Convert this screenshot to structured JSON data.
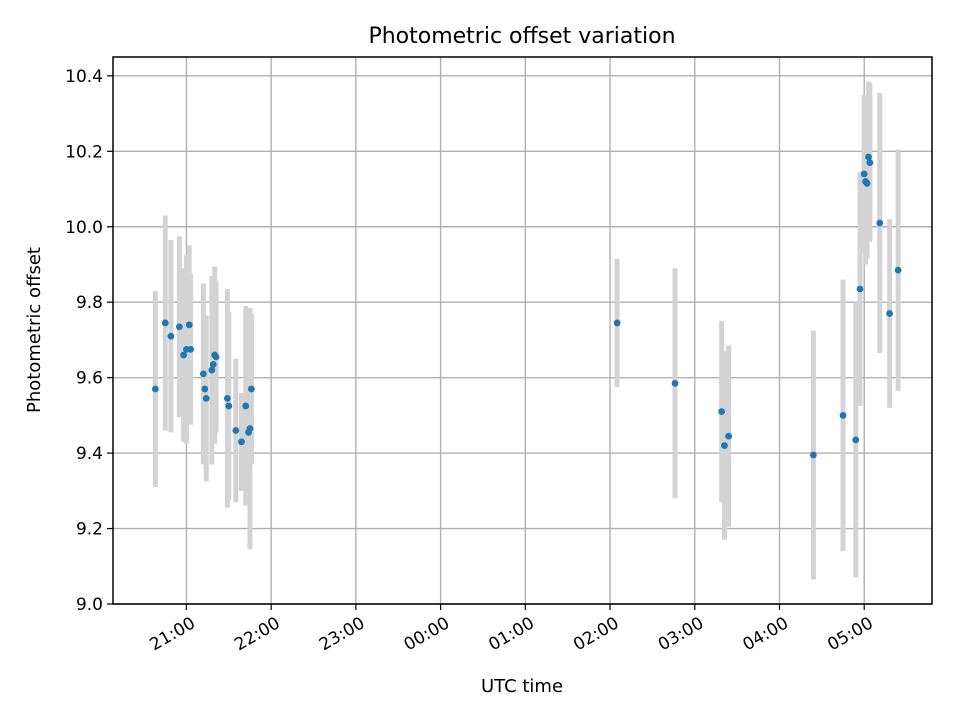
{
  "chart_data": {
    "type": "scatter",
    "title": "Photometric offset variation",
    "xlabel": "UTC time",
    "ylabel": "Photometric offset",
    "x_unit": "UTC date-time (night spans two days; times after midnight are next day)",
    "xlim": [
      "20:08",
      "05:48+1"
    ],
    "ylim": [
      9.0,
      10.45
    ],
    "xticks": [
      "21:00",
      "22:00",
      "23:00",
      "00:00",
      "01:00",
      "02:00",
      "03:00",
      "04:00",
      "05:00"
    ],
    "yticks": [
      "9.0",
      "9.2",
      "9.4",
      "9.6",
      "9.8",
      "10.0",
      "10.2",
      "10.4"
    ],
    "grid": true,
    "legend": "none",
    "colors": {
      "point": "#1f77b4",
      "errorbar": "#d3d3d3",
      "grid": "#b0b0b0"
    },
    "series": [
      {
        "points": [
          {
            "x": "20:38",
            "y": 9.57,
            "err": 0.26
          },
          {
            "x": "20:45",
            "y": 9.745,
            "err": 0.285
          },
          {
            "x": "20:49",
            "y": 9.71,
            "err": 0.255
          },
          {
            "x": "20:55",
            "y": 9.735,
            "err": 0.24
          },
          {
            "x": "20:58",
            "y": 9.66,
            "err": 0.23
          },
          {
            "x": "21:00",
            "y": 9.675,
            "err": 0.25
          },
          {
            "x": "21:02",
            "y": 9.74,
            "err": 0.21
          },
          {
            "x": "21:03",
            "y": 9.675,
            "err": 0.2
          },
          {
            "x": "21:12",
            "y": 9.61,
            "err": 0.24
          },
          {
            "x": "21:13",
            "y": 9.57,
            "err": 0.19
          },
          {
            "x": "21:14",
            "y": 9.545,
            "err": 0.22
          },
          {
            "x": "21:18",
            "y": 9.62,
            "err": 0.25
          },
          {
            "x": "21:19",
            "y": 9.635,
            "err": 0.21
          },
          {
            "x": "21:20",
            "y": 9.66,
            "err": 0.235
          },
          {
            "x": "21:21",
            "y": 9.655,
            "err": 0.2
          },
          {
            "x": "21:29",
            "y": 9.545,
            "err": 0.29
          },
          {
            "x": "21:30",
            "y": 9.525,
            "err": 0.25
          },
          {
            "x": "21:35",
            "y": 9.46,
            "err": 0.19
          },
          {
            "x": "21:39",
            "y": 9.43,
            "err": 0.13
          },
          {
            "x": "21:42",
            "y": 9.525,
            "err": 0.265
          },
          {
            "x": "21:44",
            "y": 9.455,
            "err": 0.19
          },
          {
            "x": "21:45",
            "y": 9.465,
            "err": 0.32
          },
          {
            "x": "21:46",
            "y": 9.57,
            "err": 0.2
          },
          {
            "x": "02:05+1",
            "y": 9.745,
            "err": 0.17
          },
          {
            "x": "02:46+1",
            "y": 9.585,
            "err": 0.305
          },
          {
            "x": "03:19+1",
            "y": 9.51,
            "err": 0.24
          },
          {
            "x": "03:21+1",
            "y": 9.42,
            "err": 0.25
          },
          {
            "x": "03:24+1",
            "y": 9.445,
            "err": 0.24
          },
          {
            "x": "04:24+1",
            "y": 9.395,
            "err": 0.33
          },
          {
            "x": "04:45+1",
            "y": 9.5,
            "err": 0.36
          },
          {
            "x": "04:54+1",
            "y": 9.435,
            "err": 0.365
          },
          {
            "x": "04:57+1",
            "y": 9.835,
            "err": 0.31
          },
          {
            "x": "05:00+1",
            "y": 10.14,
            "err": 0.21
          },
          {
            "x": "05:01+1",
            "y": 10.12,
            "err": 0.22
          },
          {
            "x": "05:02+1",
            "y": 10.115,
            "err": 0.2
          },
          {
            "x": "05:03+1",
            "y": 10.185,
            "err": 0.2
          },
          {
            "x": "05:04+1",
            "y": 10.17,
            "err": 0.21
          },
          {
            "x": "05:11+1",
            "y": 10.01,
            "err": 0.345
          },
          {
            "x": "05:18+1",
            "y": 9.77,
            "err": 0.25
          },
          {
            "x": "05:24+1",
            "y": 9.885,
            "err": 0.32
          }
        ]
      }
    ]
  }
}
